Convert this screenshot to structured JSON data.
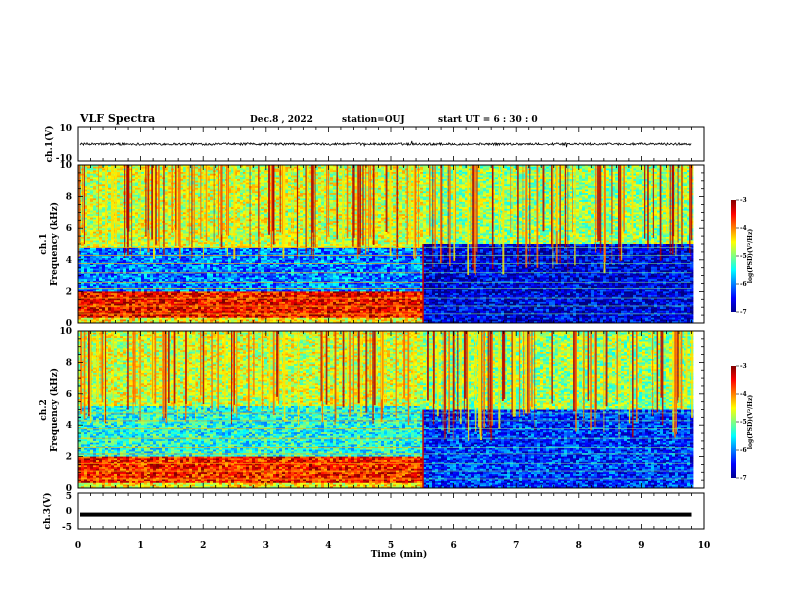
{
  "header": {
    "title": "VLF Spectra",
    "date": "Dec.8 , 2022",
    "station": "station=OUJ",
    "start": "start UT = 6 : 30 : 0"
  },
  "chart_data": [
    {
      "type": "line",
      "panel": "ch1-waveform",
      "ylabel": "ch.1(V)",
      "ylim": [
        -10,
        10
      ],
      "y_ticks": [
        "10",
        "-10"
      ],
      "description_value": "noisy waveform centered near 0 V, amplitude about ±1 V"
    },
    {
      "type": "heatmap",
      "panel": "ch1-spectrogram",
      "ylabel": "ch.1\nFrequency (kHz)",
      "ylim": [
        0,
        10
      ],
      "y_ticks": [
        "0",
        "2",
        "4",
        "6",
        "8",
        "10"
      ],
      "xlim": [
        0,
        10
      ],
      "colorbar": {
        "label": "log(PSD)(V²/Hz)",
        "ticks": [
          "-3",
          "-4",
          "-5",
          "-6",
          "-7"
        ],
        "range": [
          -7,
          -3
        ]
      },
      "transition_time_min": 5.5,
      "bands_before_transition": [
        {
          "f_low_kHz": 0.3,
          "f_high_kHz": 2.0,
          "level": -3.5
        },
        {
          "f_low_kHz": 2.0,
          "f_high_kHz": 4.8,
          "level": -6.0
        },
        {
          "f_low_kHz": 4.8,
          "f_high_kHz": 10.0,
          "level": -4.7
        }
      ],
      "bands_after_transition": [
        {
          "f_low_kHz": 0.0,
          "f_high_kHz": 5.0,
          "level": -6.6
        },
        {
          "f_low_kHz": 5.0,
          "f_high_kHz": 10.0,
          "level": -4.9
        }
      ]
    },
    {
      "type": "heatmap",
      "panel": "ch2-spectrogram",
      "ylabel": "ch.2\nFrequency (kHz)",
      "ylim": [
        0,
        10
      ],
      "y_ticks": [
        "0",
        "2",
        "4",
        "6",
        "8",
        "10"
      ],
      "xlim": [
        0,
        10
      ],
      "colorbar": {
        "label": "log(PSD)(V²/Hz)",
        "ticks": [
          "-3",
          "-4",
          "-5",
          "-6",
          "-7"
        ],
        "range": [
          -7,
          -3
        ]
      },
      "transition_time_min": 5.5,
      "bands_before_transition": [
        {
          "f_low_kHz": 0.3,
          "f_high_kHz": 2.0,
          "level": -3.6
        },
        {
          "f_low_kHz": 2.0,
          "f_high_kHz": 5.2,
          "level": -5.4
        },
        {
          "f_low_kHz": 5.2,
          "f_high_kHz": 10.0,
          "level": -4.7
        }
      ],
      "bands_after_transition": [
        {
          "f_low_kHz": 0.0,
          "f_high_kHz": 5.0,
          "level": -6.3
        },
        {
          "f_low_kHz": 5.0,
          "f_high_kHz": 10.0,
          "level": -4.9
        }
      ]
    },
    {
      "type": "line",
      "panel": "ch3-waveform",
      "ylabel": "ch.3(V)",
      "ylim": [
        -5,
        5
      ],
      "y_ticks": [
        "5",
        "0",
        "-5"
      ],
      "x_ticks": [
        "0",
        "1",
        "2",
        "3",
        "4",
        "5",
        "6",
        "7",
        "8",
        "9",
        "10"
      ],
      "xlabel": "Time (min)",
      "constant_value": -1.0
    }
  ],
  "colors": {
    "jet": [
      "#00008f",
      "#0000ff",
      "#0080ff",
      "#00ffff",
      "#80ff80",
      "#ffff00",
      "#ff8000",
      "#ff0000",
      "#800000"
    ]
  }
}
